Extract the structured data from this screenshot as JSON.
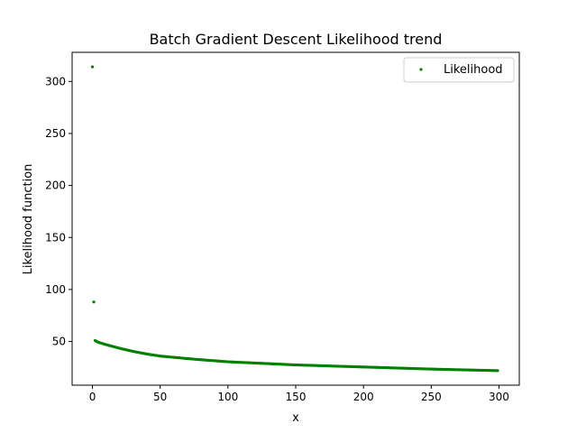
{
  "chart_data": {
    "type": "scatter",
    "title": "Batch Gradient Descent Likelihood trend",
    "xlabel": "x",
    "ylabel": "Likelihood function",
    "xlim": [
      -15,
      315
    ],
    "ylim": [
      8,
      328
    ],
    "xticks": [
      0,
      50,
      100,
      150,
      200,
      250,
      300
    ],
    "yticks": [
      50,
      100,
      150,
      200,
      250,
      300
    ],
    "grid": false,
    "legend_position": "top-right",
    "colors": {
      "series": "#008000"
    },
    "series": [
      {
        "name": "Likelihood",
        "curve_anchors": [
          [
            0,
            314
          ],
          [
            1,
            88
          ],
          [
            2,
            51
          ],
          [
            3,
            50
          ],
          [
            5,
            49
          ],
          [
            10,
            47
          ],
          [
            20,
            43.5
          ],
          [
            30,
            40.5
          ],
          [
            40,
            38
          ],
          [
            50,
            36
          ],
          [
            75,
            33
          ],
          [
            100,
            30.5
          ],
          [
            125,
            29
          ],
          [
            150,
            27.5
          ],
          [
            175,
            26.5
          ],
          [
            200,
            25.5
          ],
          [
            225,
            24.5
          ],
          [
            250,
            23.5
          ],
          [
            275,
            22.7
          ],
          [
            299,
            22
          ]
        ],
        "x_end": 299
      }
    ]
  }
}
